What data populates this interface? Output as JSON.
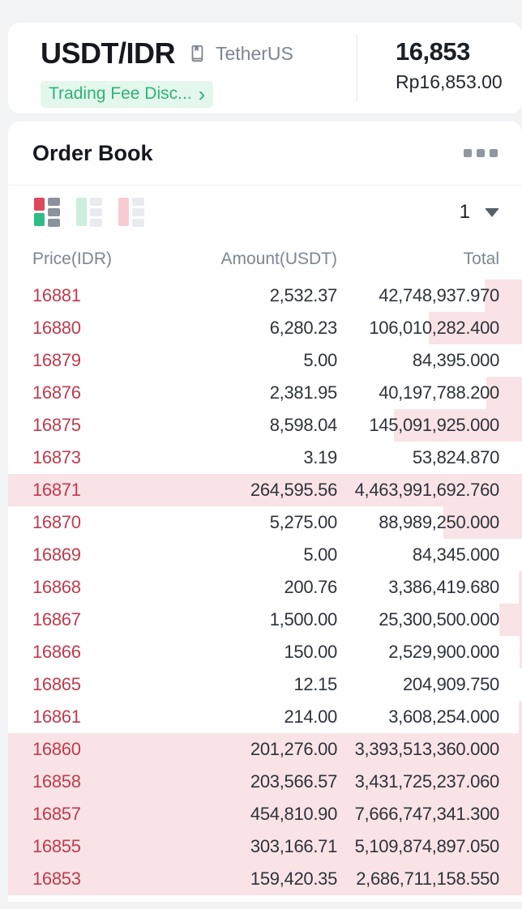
{
  "header": {
    "pair": "USDT/IDR",
    "pair_subtitle": "TetherUS",
    "token_info_icon": "token-info-book-icon",
    "fee_badge_label": "Trading Fee Disc...",
    "fee_badge_chevron": "›",
    "last_price": "16,853",
    "fiat_price": "Rp16,853.00"
  },
  "order_book": {
    "title": "Order Book",
    "more_menu_icon": "more-options-icon",
    "layout_icons": [
      "orderbook-both-sides-icon",
      "orderbook-buy-only-icon",
      "orderbook-sell-only-icon"
    ],
    "precision_selected": "1",
    "columns": [
      "Price(IDR)",
      "Amount(USDT)",
      "Total"
    ],
    "rows": [
      {
        "price": "16881",
        "amount": "2,532.37",
        "total": "42,748,937.970",
        "depth_pct": 7.3
      },
      {
        "price": "16880",
        "amount": "6,280.23",
        "total": "106,010,282.400",
        "depth_pct": 18.2
      },
      {
        "price": "16879",
        "amount": "5.00",
        "total": "84,395.000",
        "depth_pct": 0
      },
      {
        "price": "16876",
        "amount": "2,381.95",
        "total": "40,197,788.200",
        "depth_pct": 6.9
      },
      {
        "price": "16875",
        "amount": "8,598.04",
        "total": "145,091,925.000",
        "depth_pct": 25
      },
      {
        "price": "16873",
        "amount": "3.19",
        "total": "53,824.870",
        "depth_pct": 0
      },
      {
        "price": "16871",
        "amount": "264,595.56",
        "total": "4,463,991,692.760",
        "depth_pct": 100
      },
      {
        "price": "16870",
        "amount": "5,275.00",
        "total": "88,989,250.000",
        "depth_pct": 15.3
      },
      {
        "price": "16869",
        "amount": "5.00",
        "total": "84,345.000",
        "depth_pct": 0
      },
      {
        "price": "16868",
        "amount": "200.76",
        "total": "3,386,419.680",
        "depth_pct": 0.6
      },
      {
        "price": "16867",
        "amount": "1,500.00",
        "total": "25,300,500.000",
        "depth_pct": 4.4
      },
      {
        "price": "16866",
        "amount": "150.00",
        "total": "2,529,900.000",
        "depth_pct": 0.5
      },
      {
        "price": "16865",
        "amount": "12.15",
        "total": "204,909.750",
        "depth_pct": 0
      },
      {
        "price": "16861",
        "amount": "214.00",
        "total": "3,608,254.000",
        "depth_pct": 0.7
      },
      {
        "price": "16860",
        "amount": "201,276.00",
        "total": "3,393,513,360.000",
        "depth_pct": 100
      },
      {
        "price": "16858",
        "amount": "203,566.57",
        "total": "3,431,725,237.060",
        "depth_pct": 100
      },
      {
        "price": "16857",
        "amount": "454,810.90",
        "total": "7,666,747,341.300",
        "depth_pct": 100
      },
      {
        "price": "16855",
        "amount": "303,166.71",
        "total": "5,109,874,897.050",
        "depth_pct": 100
      },
      {
        "price": "16853",
        "amount": "159,420.35",
        "total": "2,686,711,158.550",
        "depth_pct": 100
      }
    ]
  },
  "colors": {
    "sell_red_text": "#bf3b4d",
    "depth_bar_pink": "#f9e3e6",
    "badge_green_text": "#2eb377",
    "badge_green_bg": "#e4f7ec",
    "dark_text": "#1e2329",
    "muted_text": "#7d8694",
    "card_bg": "#ffffff",
    "page_bg": "#f2f3f5"
  }
}
